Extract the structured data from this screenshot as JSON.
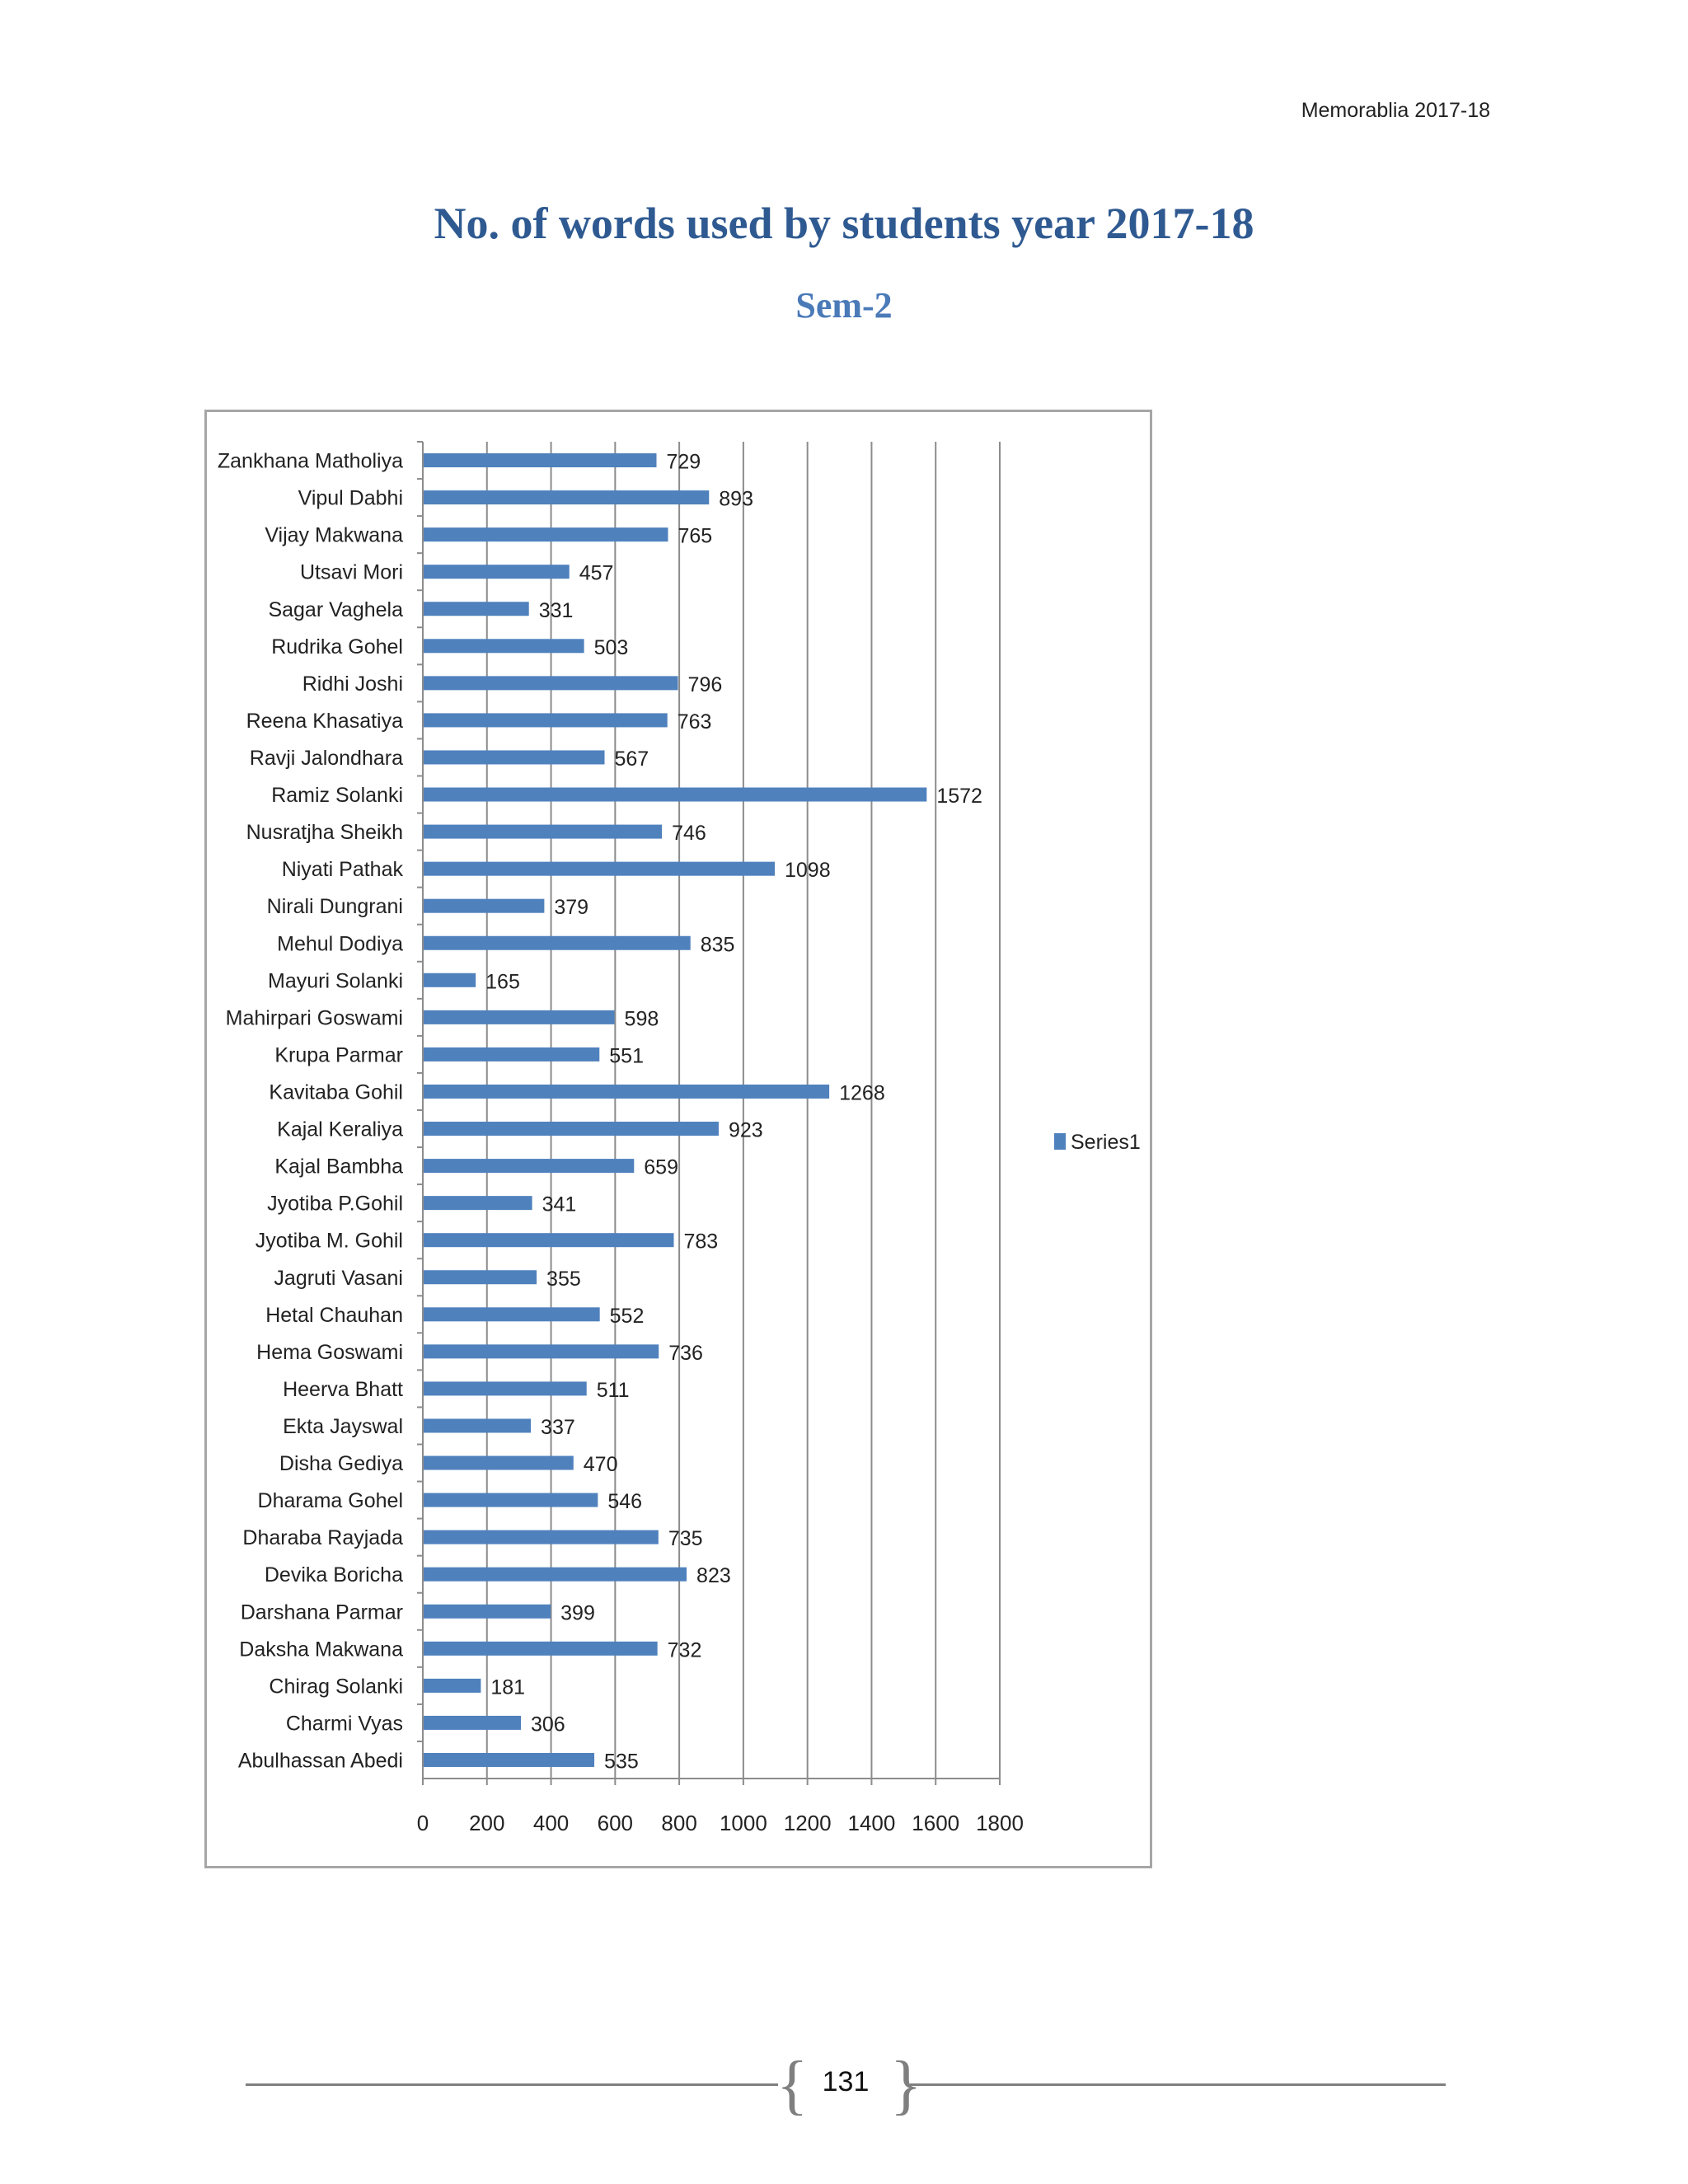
{
  "header": {
    "note": "Memorablia 2017-18"
  },
  "page": {
    "title": "No. of words used by students year 2017-18",
    "subtitle": "Sem-2",
    "page_number": "131"
  },
  "chart_data": {
    "type": "bar",
    "orientation": "horizontal",
    "categories": [
      "Zankhana Matholiya",
      "Vipul Dabhi",
      "Vijay Makwana",
      "Utsavi Mori",
      "Sagar Vaghela",
      "Rudrika Gohel",
      "Ridhi Joshi",
      "Reena Khasatiya",
      "Ravji Jalondhara",
      "Ramiz Solanki",
      "Nusratjha Sheikh",
      "Niyati Pathak",
      "Nirali Dungrani",
      "Mehul Dodiya",
      "Mayuri Solanki",
      "Mahirpari Goswami",
      "Krupa Parmar",
      "Kavitaba Gohil",
      "Kajal Keraliya",
      "Kajal Bambha",
      "Jyotiba P.Gohil",
      "Jyotiba M. Gohil",
      "Jagruti Vasani",
      "Hetal Chauhan",
      "Hema Goswami",
      "Heerva Bhatt",
      "Ekta Jayswal",
      "Disha Gediya",
      "Dharama Gohel",
      "Dharaba Rayjada",
      "Devika Boricha",
      "Darshana Parmar",
      "Daksha Makwana",
      "Chirag Solanki",
      "Charmi Vyas",
      "Abulhassan Abedi"
    ],
    "series": [
      {
        "name": "Series1",
        "color": "#4f81bd",
        "values": [
          729,
          893,
          765,
          457,
          331,
          503,
          796,
          763,
          567,
          1572,
          746,
          1098,
          379,
          835,
          165,
          598,
          551,
          1268,
          923,
          659,
          341,
          783,
          355,
          552,
          736,
          511,
          337,
          470,
          546,
          735,
          823,
          399,
          732,
          181,
          306,
          535
        ]
      }
    ],
    "x_ticks": [
      "0",
      "200",
      "400",
      "600",
      "800",
      "1000",
      "1200",
      "1400",
      "1600",
      "1800"
    ],
    "xlim": [
      0,
      1800
    ],
    "grid": "vertical",
    "legend": {
      "position": "right",
      "entries": [
        "Series1"
      ]
    },
    "data_labels": true
  }
}
